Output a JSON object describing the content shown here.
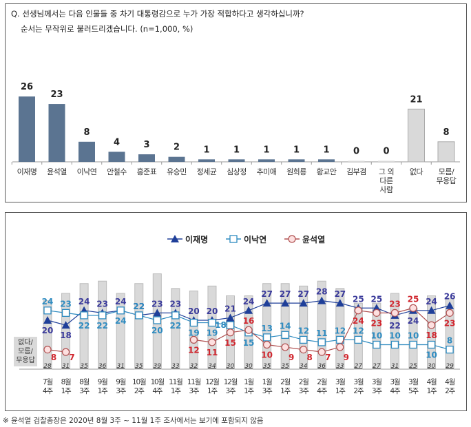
{
  "question": {
    "line1": "Q. 선생님께서는 다음 인물들 중 차기 대통령감으로 누가 가장 적합하다고 생각하십니까?",
    "line2": "순서는 무작위로 불러드리겠습니다. (n=1,000, %)"
  },
  "footnote": "※ 윤석열 검찰총장은 2020년 8월 3주 ~ 11월 1주 조사에서는 보기에 포함되지 않음",
  "chart_data": [
    {
      "type": "bar",
      "title": "",
      "categories": [
        "이재명",
        "윤석열",
        "이낙연",
        "안철수",
        "홍준표",
        "유승민",
        "정세균",
        "심상정",
        "추미애",
        "원희룡",
        "황교안",
        "김부겸",
        "그 외\n다른\n사람",
        "없다",
        "모름/\n무응답"
      ],
      "values": [
        26,
        23,
        8,
        4,
        3,
        2,
        1,
        1,
        1,
        1,
        1,
        0,
        0,
        21,
        8
      ],
      "colors": {
        "candidate": "#5b7491",
        "other": "#d9d9d9"
      },
      "ylim": [
        0,
        30
      ]
    },
    {
      "type": "line",
      "categories": [
        "7월\n4주",
        "8월\n1주",
        "8월\n3주",
        "9월\n1주",
        "9월\n3주",
        "10월\n2주",
        "10월\n4주",
        "11월\n1주",
        "11월\n3주",
        "12월\n1주",
        "12월\n3주",
        "1월\n1주",
        "1월\n3주",
        "2월\n1주",
        "2월\n3주",
        "2월\n4주",
        "3월\n1주",
        "3월\n2주",
        "3월\n3주",
        "3월\n4주",
        "3월\n5주",
        "4월\n1주",
        "4월\n2주"
      ],
      "bar_series": {
        "name": "없다/\n모름/\n무응답",
        "values": [
          28,
          31,
          35,
          36,
          31,
          35,
          39,
          33,
          32,
          34,
          30,
          30,
          35,
          35,
          34,
          36,
          33,
          27,
          27,
          31,
          25,
          30,
          29
        ],
        "color": "#d9d9d9"
      },
      "series": [
        {
          "name": "이재명",
          "color": "#1f3f99",
          "label_color": "#3a3a9a",
          "marker": "triangle",
          "values": [
            20,
            18,
            24,
            23,
            24,
            22,
            23,
            23,
            20,
            20,
            21,
            24,
            27,
            27,
            27,
            28,
            27,
            25,
            25,
            22,
            24,
            24,
            26
          ]
        },
        {
          "name": "이낙연",
          "color": "#2e8bc0",
          "label_color": "#2e8bc0",
          "marker": "square",
          "values": [
            24,
            23,
            22,
            22,
            24,
            22,
            20,
            22,
            19,
            19,
            18,
            15,
            13,
            14,
            12,
            11,
            12,
            12,
            10,
            10,
            10,
            10,
            8
          ]
        },
        {
          "name": "윤석열",
          "color": "#b05050",
          "label_color": "#d0262e",
          "marker": "circle",
          "values": [
            8,
            7,
            null,
            null,
            null,
            null,
            null,
            null,
            12,
            11,
            15,
            16,
            10,
            9,
            8,
            7,
            9,
            24,
            23,
            23,
            25,
            18,
            23
          ]
        }
      ],
      "ylim": [
        0,
        40
      ],
      "legend": "top-center"
    }
  ]
}
